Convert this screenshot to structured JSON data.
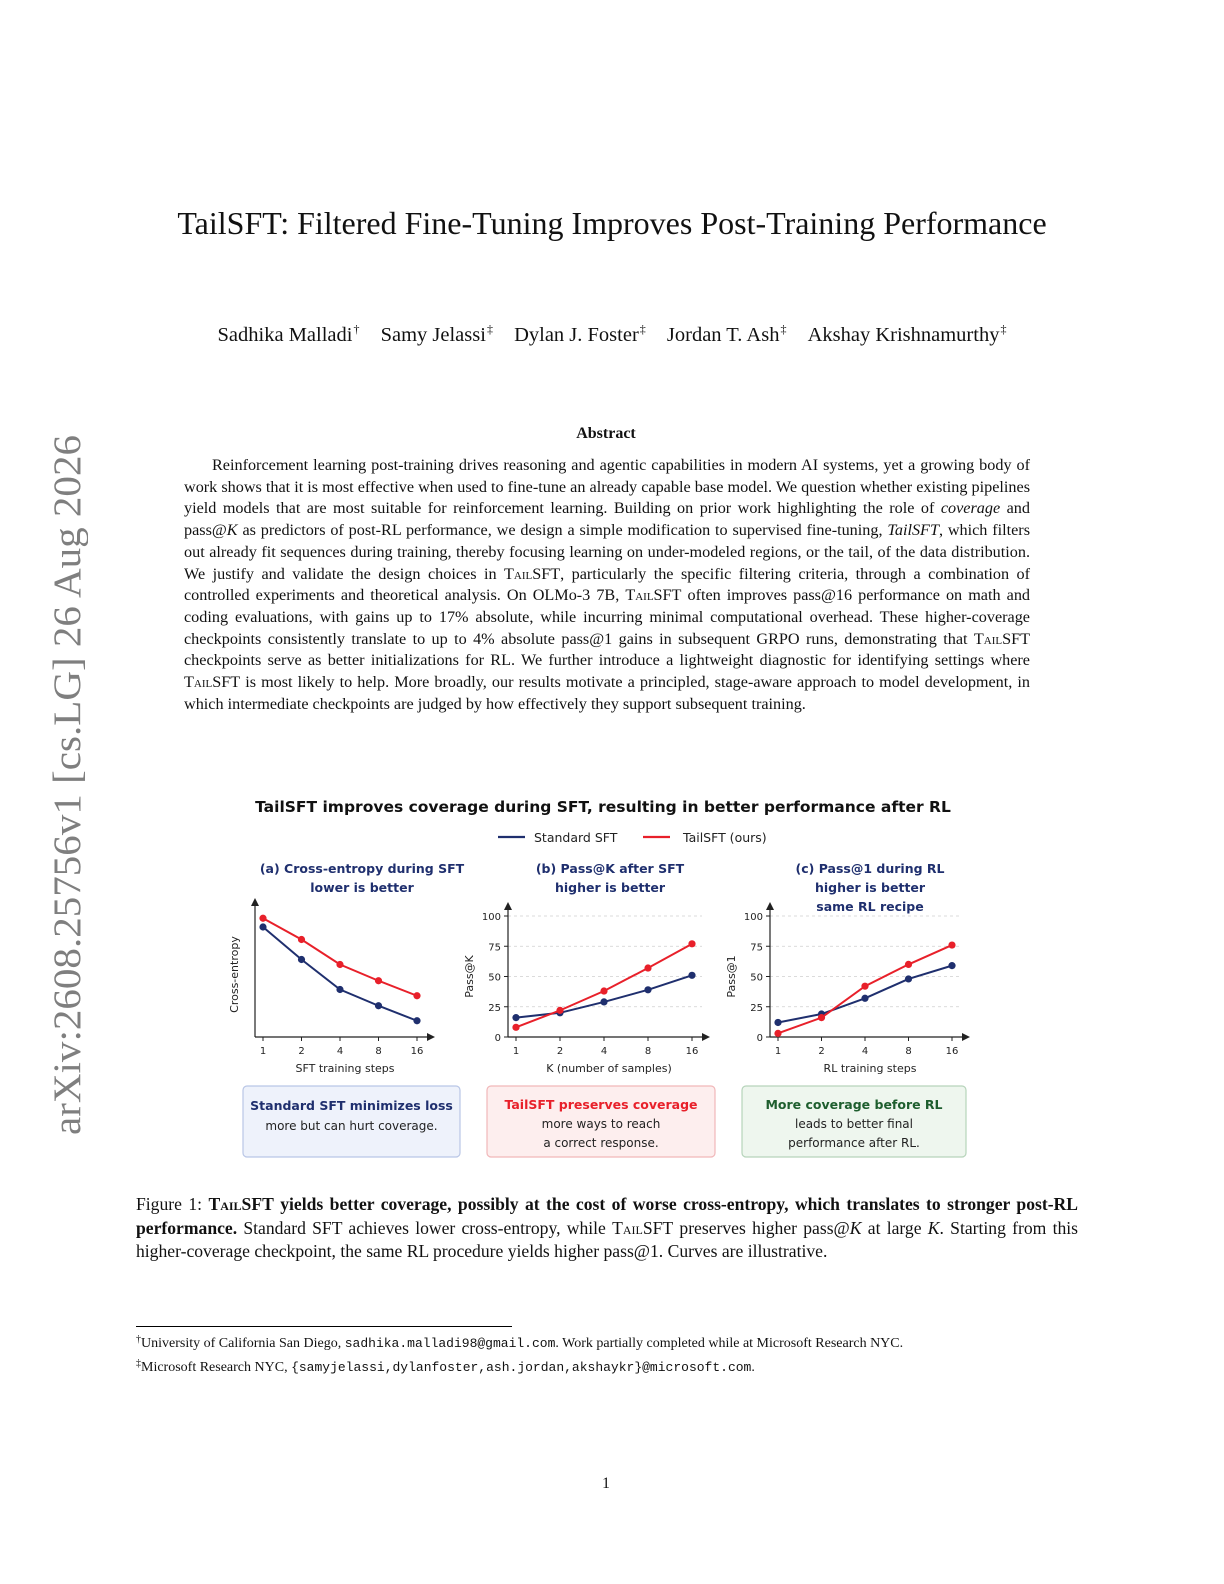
{
  "sidebar": {
    "text": "arXiv:2608.25756v1  [cs.LG]  26 Aug 2026"
  },
  "paper": {
    "title": "TailSFT: Filtered Fine-Tuning Improves Post-Training Performance",
    "authors": [
      {
        "name": "Sadhika Malladi",
        "mark": "†"
      },
      {
        "name": "Samy Jelassi",
        "mark": "‡"
      },
      {
        "name": "Dylan J. Foster",
        "mark": "‡"
      },
      {
        "name": "Jordan T. Ash",
        "mark": "‡"
      },
      {
        "name": "Akshay Krishnamurthy",
        "mark": "‡"
      }
    ]
  },
  "abstract": {
    "heading": "Abstract",
    "s1": "Reinforcement learning post-training drives reasoning and agentic capabilities in modern AI systems, yet a growing body of work shows that it is most effective when used to fine-tune an already capable base model. We question whether existing pipelines yield models that are most suitable for reinforcement learning. Building on prior work highlighting the role of ",
    "coverage": "coverage",
    "s2": " and pass@",
    "k": "K",
    "s3": " as predictors of post-RL performance, we design a simple modification to supervised fine-tuning, ",
    "tailsft_italic": "TailSFT",
    "s4": ", which filters out already fit sequences during training, thereby focusing learning on under-modeled regions, or the tail, of the data distribution. We justify and validate the design choices in ",
    "tailsft_sc": "TailSFT",
    "s5": ", particularly the specific filtering criteria, through a combination of controlled experiments and theoretical analysis. On OLMo-3 7B, ",
    "s6": " often improves pass@16 performance on math and coding evaluations, with gains up to 17% absolute, while incurring minimal computational overhead. These higher-coverage checkpoints consistently translate to up to 4% absolute pass@1 gains in subsequent GRPO runs, demonstrating that ",
    "s7": " checkpoints serve as better initializations for RL. We further introduce a lightweight diagnostic for identifying settings where ",
    "s8": " is most likely to help. More broadly, our results motivate a principled, stage-aware approach to model development, in which intermediate checkpoints are judged by how effectively they support subsequent training."
  },
  "figure": {
    "title": "TailSFT improves coverage during SFT, resulting in better performance after RL",
    "legend": [
      {
        "name": "Standard SFT",
        "color": "#1f2f6e"
      },
      {
        "name": "TailSFT (ours)",
        "color": "#e8202a"
      }
    ],
    "boxes": [
      {
        "line1": "Standard SFT minimizes loss",
        "line2": "more but can hurt coverage.",
        "line3": "",
        "accent": "#1f2f6e",
        "bg": "#eef2fb",
        "border": "#b9c6e6"
      },
      {
        "line1": "TailSFT preserves coverage",
        "line2": "more ways to reach",
        "line3": "a correct response.",
        "accent": "#e8202a",
        "bg": "#fdeeee",
        "border": "#f1b7b9"
      },
      {
        "line1": "More coverage before RL",
        "line2": "leads to better final",
        "line3": "performance after RL.",
        "accent": "#1e5e2e",
        "bg": "#eef6ee",
        "border": "#b6d4ba"
      }
    ]
  },
  "chart_data": [
    {
      "type": "line",
      "title": "(a) Cross-entropy during SFT",
      "subtitle": [
        "lower is better"
      ],
      "xlabel": "SFT training steps",
      "ylabel": "Cross-entropy",
      "categories": [
        "1",
        "2",
        "4",
        "8",
        "16"
      ],
      "yticks": [],
      "ylim": [
        0,
        100
      ],
      "grid": false,
      "series": [
        {
          "name": "Standard SFT",
          "values": [
            88,
            62,
            38,
            25,
            13
          ]
        },
        {
          "name": "TailSFT (ours)",
          "values": [
            95,
            78,
            58,
            45,
            33
          ]
        }
      ]
    },
    {
      "type": "line",
      "title": "(b) Pass@K after SFT",
      "subtitle": [
        "higher is better"
      ],
      "xlabel": "K (number of samples)",
      "ylabel": "Pass@K",
      "categories": [
        "1",
        "2",
        "4",
        "8",
        "16"
      ],
      "yticks": [
        "0",
        "25",
        "50",
        "75",
        "100"
      ],
      "ylim": [
        0,
        100
      ],
      "grid": true,
      "series": [
        {
          "name": "Standard SFT",
          "values": [
            16,
            20,
            29,
            39,
            51
          ]
        },
        {
          "name": "TailSFT (ours)",
          "values": [
            8,
            22,
            38,
            57,
            77
          ]
        }
      ]
    },
    {
      "type": "line",
      "title": "(c) Pass@1 during RL",
      "subtitle": [
        "higher is better",
        "same RL recipe"
      ],
      "xlabel": "RL training steps",
      "ylabel": "Pass@1",
      "categories": [
        "1",
        "2",
        "4",
        "8",
        "16"
      ],
      "yticks": [
        "0",
        "25",
        "50",
        "75",
        "100"
      ],
      "ylim": [
        0,
        100
      ],
      "grid": true,
      "series": [
        {
          "name": "Standard SFT",
          "values": [
            12,
            19,
            32,
            48,
            59
          ]
        },
        {
          "name": "TailSFT (ours)",
          "values": [
            3,
            16,
            42,
            60,
            76
          ]
        }
      ]
    }
  ],
  "caption": {
    "label": "Figure 1: ",
    "bold_sc": "TailSFT",
    "bold_rest": " yields better coverage, possibly at the cost of worse cross-entropy, which translates to stronger post-RL performance.",
    "t1": " Standard SFT achieves lower cross-entropy, while ",
    "t2": " preserves higher pass@",
    "t3": " at large ",
    "t4": ". Starting from this higher-coverage checkpoint, the same RL procedure yields higher pass@1. Curves are illustrative.",
    "k": "K"
  },
  "footnotes": {
    "f1_mark": "†",
    "f1_a": "University of California San Diego, ",
    "f1_email": "sadhika.malladi98@gmail.com",
    "f1_b": ". Work partially completed while at Microsoft Research NYC.",
    "f2_mark": "‡",
    "f2_a": "Microsoft Research NYC, ",
    "f2_email": "{samyjelassi,dylanfoster,ash.jordan,akshaykr}@microsoft.com",
    "f2_b": "."
  },
  "page_number": "1"
}
